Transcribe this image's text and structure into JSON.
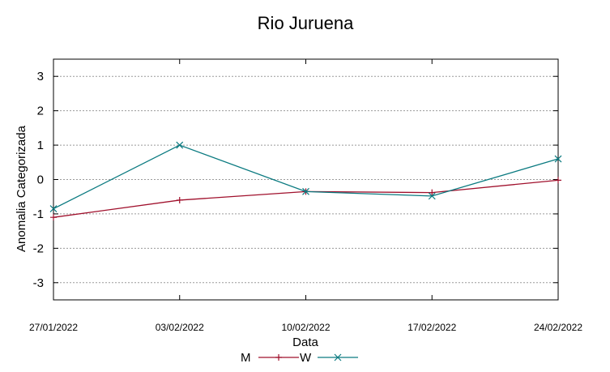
{
  "chart_data": {
    "type": "line",
    "title": "Rio Juruena",
    "xlabel": "Data",
    "ylabel": "Anomalia Categorizada",
    "categories": [
      "27/01/2022",
      "03/02/2022",
      "10/02/2022",
      "17/02/2022",
      "24/02/2022"
    ],
    "ylim": [
      -3.5,
      3.5
    ],
    "yticks": [
      "-3",
      "-2",
      "-1",
      "0",
      "1",
      "2",
      "3"
    ],
    "grid": true,
    "legend_position": "bottom",
    "series": [
      {
        "name": "M",
        "values": [
          -1.1,
          -0.6,
          -0.35,
          -0.38,
          -0.02
        ],
        "color": "#a0102c",
        "marker": "plus"
      },
      {
        "name": "W",
        "values": [
          -0.85,
          1.0,
          -0.35,
          -0.48,
          0.6
        ],
        "color": "#0a7a80",
        "marker": "cross"
      }
    ]
  }
}
